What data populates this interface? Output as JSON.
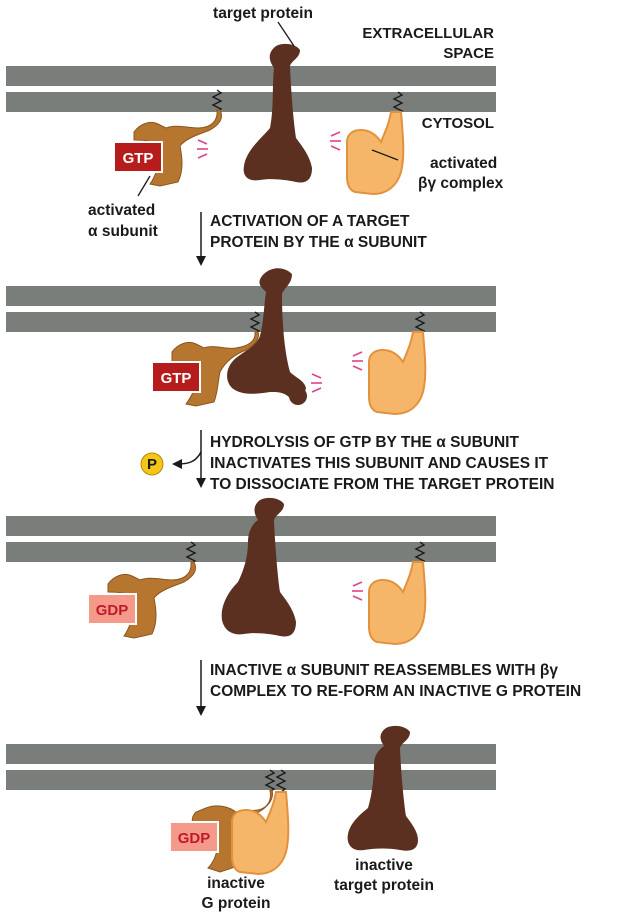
{
  "colors": {
    "membrane": "#7a7e7b",
    "target_protein": "#5b3020",
    "alpha_subunit": "#b6762f",
    "alpha_subunit_dark": "#8a5520",
    "beta_gamma": "#f6b66a",
    "beta_gamma_anchor": "#e2923c",
    "gtp_fill": "#b71c1c",
    "gtp_text": "#ffffff",
    "gdp_fill": "#f59a8a",
    "gdp_text": "#c0192b",
    "phosphate": "#f5c518",
    "activity_marks": "#e0428a"
  },
  "labels": {
    "target_protein": "target protein",
    "extracellular_line1": "EXTRACELLULAR",
    "extracellular_line2": "SPACE",
    "cytosol": "CYTOSOL",
    "activated_bg_line1": "activated",
    "activated_bg_line2": "βγ complex",
    "activated_alpha_line1": "activated",
    "activated_alpha_line2": "α subunit",
    "gtp": "GTP",
    "gdp": "GDP",
    "phosphate": "P",
    "inactive_g_line1": "inactive",
    "inactive_g_line2": "G protein",
    "inactive_target_line1": "inactive",
    "inactive_target_line2": "target protein"
  },
  "steps": [
    {
      "line1": "ACTIVATION OF A TARGET",
      "line2": "PROTEIN BY THE α SUBUNIT",
      "line3": ""
    },
    {
      "line1": "HYDROLYSIS OF GTP BY THE α SUBUNIT",
      "line2": "INACTIVATES THIS SUBUNIT AND CAUSES IT",
      "line3": "TO DISSOCIATE FROM THE TARGET PROTEIN"
    },
    {
      "line1": "INACTIVE α SUBUNIT REASSEMBLES WITH βγ",
      "line2": "COMPLEX TO RE-FORM AN INACTIVE G PROTEIN",
      "line3": ""
    }
  ]
}
